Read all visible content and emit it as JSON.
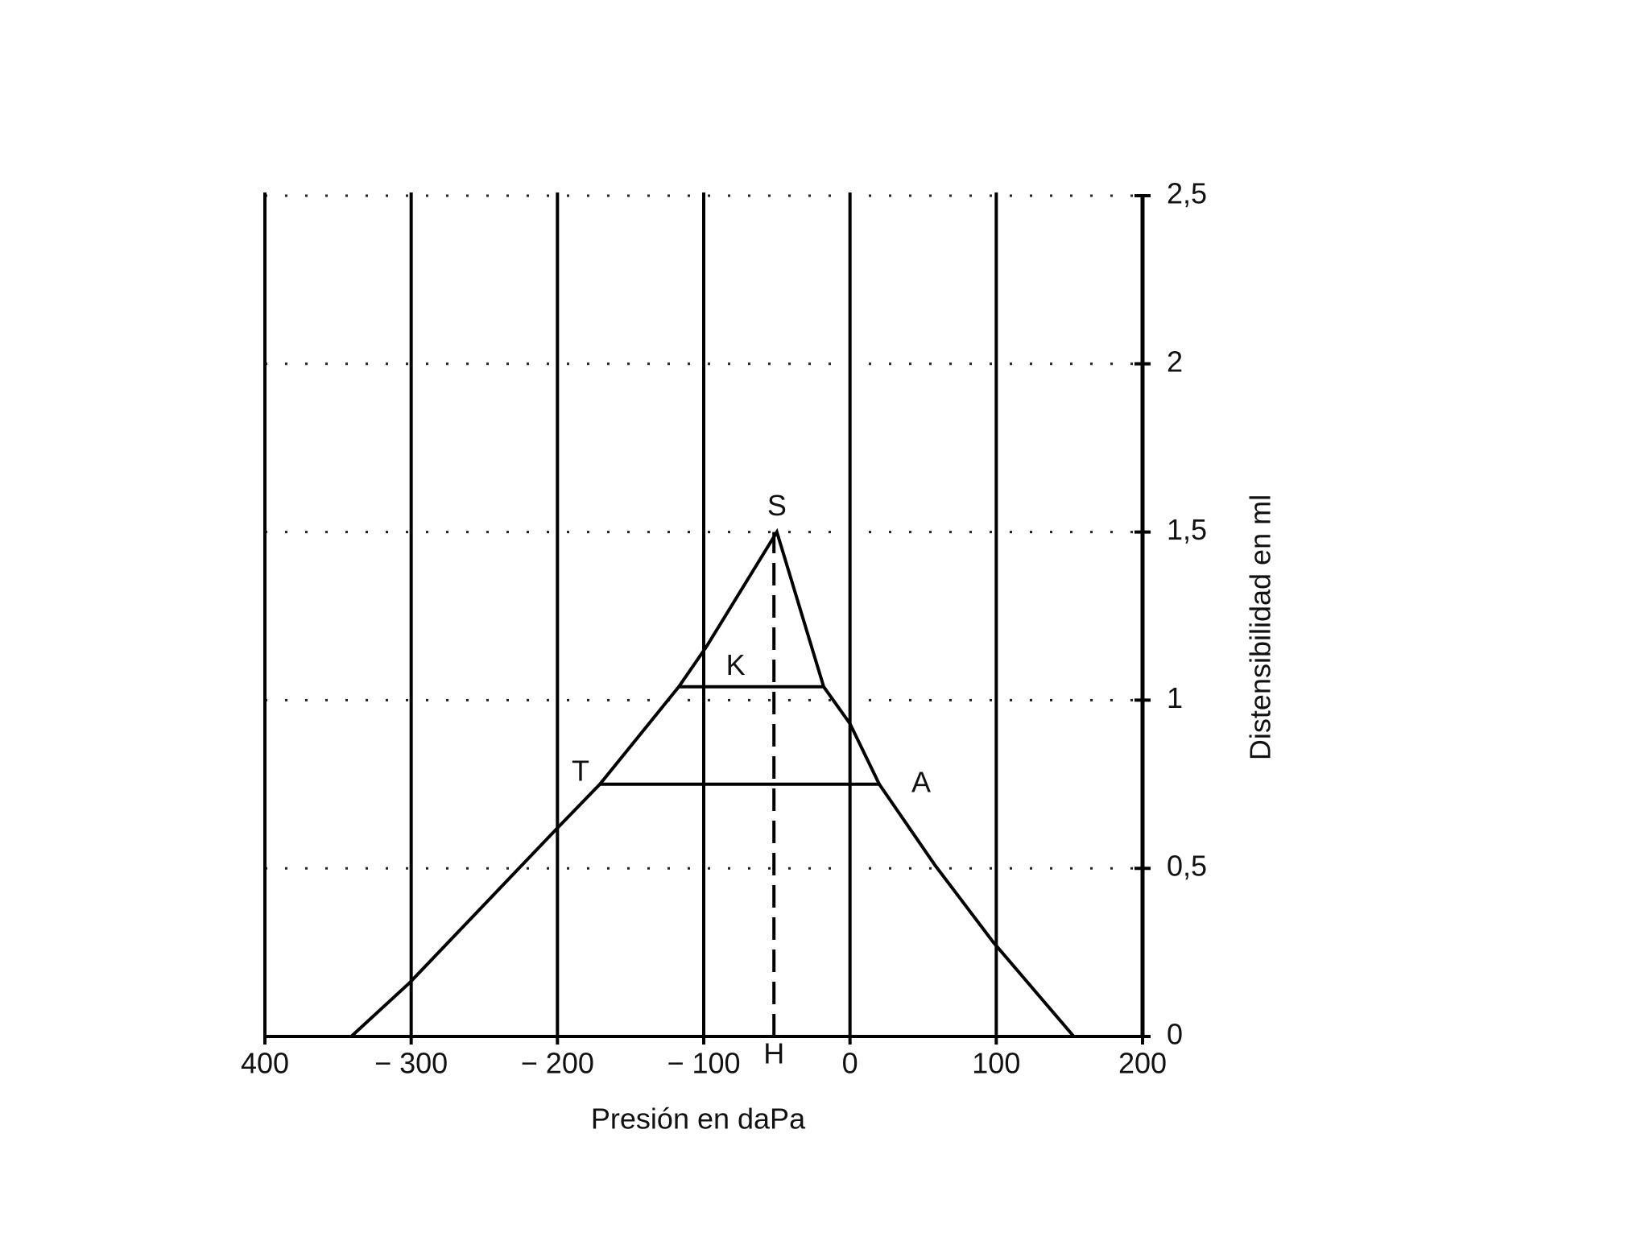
{
  "chart_data": {
    "type": "line",
    "x_label": "Presión en daPa",
    "y_label": "Distensibilidad en ml",
    "x": [
      -341,
      -301,
      -200,
      -171,
      -117,
      -98,
      -50,
      -18,
      0,
      20,
      58,
      98,
      153
    ],
    "values": [
      0,
      0.16,
      0.62,
      0.75,
      1.04,
      1.16,
      1.5,
      1.04,
      0.93,
      0.75,
      0.51,
      0.28,
      0
    ],
    "color": "#000000",
    "xlim": [
      -400,
      200
    ],
    "ylim": [
      0,
      2.5
    ],
    "xticks": [
      {
        "value": -400,
        "label": "400"
      },
      {
        "value": -300,
        "label": "− 300"
      },
      {
        "value": -200,
        "label": "− 200"
      },
      {
        "value": -100,
        "label": "− 100"
      },
      0,
      100,
      200
    ],
    "yticks": [
      0,
      {
        "value": 0.5,
        "label": "0,5"
      },
      1,
      {
        "value": 1.5,
        "label": "1,5"
      },
      2,
      {
        "value": 2.5,
        "label": "2,5"
      }
    ],
    "grid": true,
    "annotations": [
      {
        "text": "S",
        "x": -50,
        "y": 1.5
      },
      {
        "text": "K",
        "x": -65,
        "y": 1.04
      },
      {
        "text": "T",
        "x": -171,
        "y": 0.75
      },
      {
        "text": "A",
        "x": 20,
        "y": 0.75
      },
      {
        "text": "H",
        "x": -52,
        "y": 0
      }
    ],
    "hlines": [
      {
        "y": 1.04,
        "x": [
          -117,
          -18
        ]
      },
      {
        "y": 0.75,
        "x": [
          -171,
          20
        ]
      }
    ],
    "vline": {
      "x": -52,
      "y": [
        0,
        1.5
      ]
    }
  }
}
